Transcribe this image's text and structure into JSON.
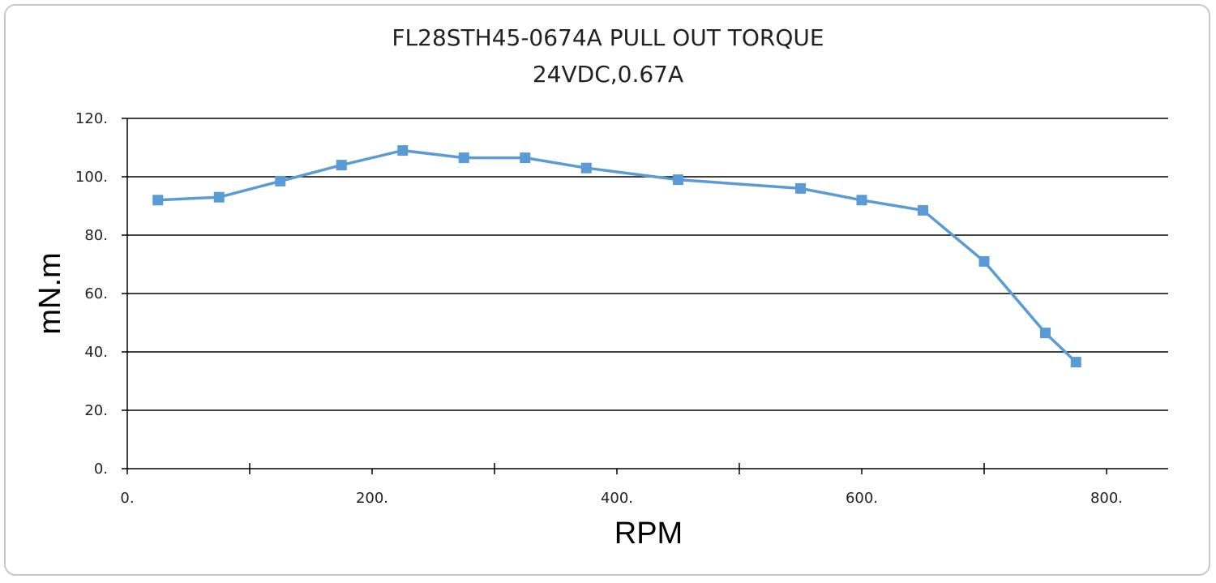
{
  "chart_data": {
    "type": "line",
    "title": "FL28STH45-0674A PULL OUT TORQUE",
    "subtitle": "24VDC,0.67A",
    "xlabel": "RPM",
    "ylabel": "mN.m",
    "xlim": [
      0,
      850
    ],
    "ylim": [
      0,
      120
    ],
    "x_ticks": [
      0,
      200,
      400,
      600,
      800
    ],
    "x_tick_labels": [
      "0.",
      "200.",
      "400.",
      "600.",
      "800."
    ],
    "x_minor_ticks": [
      100,
      300,
      500,
      700
    ],
    "y_ticks": [
      0,
      20,
      40,
      60,
      80,
      100,
      120
    ],
    "y_tick_labels": [
      "0.",
      "20.",
      "40.",
      "60.",
      "80.",
      "100.",
      "120."
    ],
    "grid": "horizontal",
    "series": [
      {
        "color": "#5b9bd5",
        "marker": "square",
        "x": [
          25,
          75,
          125,
          175,
          225,
          275,
          325,
          375,
          450,
          550,
          600,
          650,
          700,
          750,
          775
        ],
        "y": [
          92,
          93,
          98.5,
          104,
          109,
          106.5,
          106.5,
          103,
          99,
          96,
          92,
          88.5,
          71,
          46.5,
          36.5
        ]
      }
    ]
  }
}
